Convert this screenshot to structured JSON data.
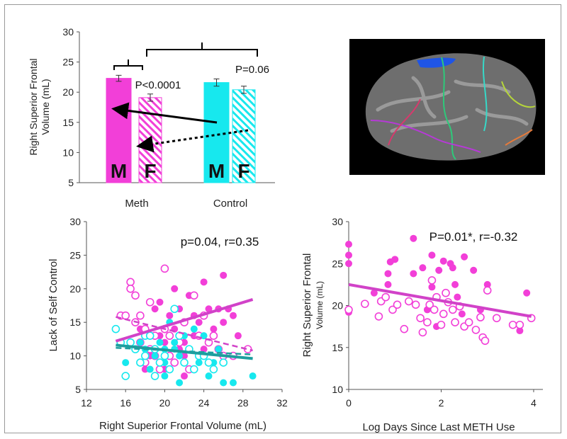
{
  "colors": {
    "meth": "#f23fd8",
    "control": "#17e8ee",
    "meth_trend": "#d142c8",
    "control_trend": "#1d9e9e",
    "axis": "#555555"
  },
  "chart_data": [
    {
      "type": "bar",
      "ylabel": "Right Superior Frontal Volume (mL)",
      "ylim": [
        5,
        30
      ],
      "yticks": [
        "5",
        "10",
        "15",
        "20",
        "25",
        "30"
      ],
      "categories": [
        "Meth",
        "Control"
      ],
      "series": [
        {
          "name": "M",
          "values": [
            22.3,
            21.6
          ],
          "errors": [
            0.5,
            0.6
          ]
        },
        {
          "name": "F",
          "values": [
            19.1,
            20.4
          ],
          "errors": [
            0.6,
            0.6
          ]
        }
      ],
      "bar_labels": [
        "M",
        "F",
        "M",
        "F"
      ],
      "annotations": [
        "P<0.0001",
        "P=0.06"
      ]
    },
    {
      "type": "scatter",
      "title": "p=0.04, r=0.35",
      "xlabel": "Right Superior Frontal Volume (mL)",
      "ylabel": "Lack of Self Control",
      "xlim": [
        12,
        32
      ],
      "ylim": [
        5,
        30
      ],
      "xticks": [
        "12",
        "16",
        "20",
        "24",
        "28",
        "32"
      ],
      "yticks": [
        "5",
        "10",
        "15",
        "20",
        "25",
        "30"
      ],
      "series": [
        {
          "group": "meth_male",
          "points": [
            [
              17.5,
              14
            ],
            [
              18,
              8
            ],
            [
              18.5,
              10
            ],
            [
              19,
              17
            ],
            [
              19.5,
              13
            ],
            [
              20,
              8
            ],
            [
              20.5,
              16
            ],
            [
              21,
              20
            ],
            [
              21,
              14
            ],
            [
              21.5,
              17
            ],
            [
              22,
              12
            ],
            [
              22,
              10
            ],
            [
              22.5,
              19
            ],
            [
              23,
              16
            ],
            [
              23,
              13
            ],
            [
              23.5,
              15
            ],
            [
              24,
              21
            ],
            [
              24,
              11
            ],
            [
              24.5,
              17
            ],
            [
              25,
              14
            ],
            [
              25.5,
              17
            ],
            [
              26,
              15
            ],
            [
              26,
              22
            ],
            [
              26.5,
              17
            ],
            [
              27,
              16
            ],
            [
              27.5,
              13
            ],
            [
              22,
              7
            ],
            [
              21.5,
              11
            ],
            [
              20,
              12
            ],
            [
              19.5,
              18
            ]
          ]
        },
        {
          "group": "meth_female",
          "points": [
            [
              15.5,
              16
            ],
            [
              16,
              16
            ],
            [
              16.5,
              21
            ],
            [
              16.5,
              20
            ],
            [
              17,
              19
            ],
            [
              17,
              15
            ],
            [
              17.5,
              12
            ],
            [
              17.5,
              16
            ],
            [
              18,
              14
            ],
            [
              18,
              9
            ],
            [
              18.5,
              11
            ],
            [
              19,
              13
            ],
            [
              19,
              10
            ],
            [
              19.5,
              8
            ],
            [
              20,
              23
            ],
            [
              20,
              14
            ],
            [
              20.5,
              13
            ],
            [
              21,
              9
            ],
            [
              21.5,
              12
            ],
            [
              22,
              15
            ],
            [
              22.5,
              8
            ],
            [
              23,
              19
            ],
            [
              23.5,
              13
            ],
            [
              24,
              16
            ],
            [
              24.5,
              12
            ],
            [
              25,
              13
            ],
            [
              25.5,
              11
            ],
            [
              26,
              10
            ],
            [
              27,
              10
            ],
            [
              28.5,
              11
            ],
            [
              18.5,
              18
            ],
            [
              20.5,
              10
            ]
          ]
        },
        {
          "group": "control_male",
          "points": [
            [
              16,
              9
            ],
            [
              16.5,
              12
            ],
            [
              17,
              11
            ],
            [
              17.5,
              12
            ],
            [
              18,
              11
            ],
            [
              18.5,
              8
            ],
            [
              19,
              10
            ],
            [
              19.5,
              12
            ],
            [
              20,
              9
            ],
            [
              20,
              11
            ],
            [
              20.5,
              15
            ],
            [
              21,
              11
            ],
            [
              21,
              12
            ],
            [
              21.5,
              10
            ],
            [
              22,
              13
            ],
            [
              22.5,
              11
            ],
            [
              23,
              14
            ],
            [
              23.5,
              9
            ],
            [
              24,
              13
            ],
            [
              24.5,
              7
            ],
            [
              25,
              9
            ],
            [
              25.5,
              11
            ],
            [
              26,
              6
            ],
            [
              27,
              6
            ],
            [
              29,
              7
            ],
            [
              21.5,
              6
            ],
            [
              20,
              7
            ]
          ]
        },
        {
          "group": "control_female",
          "points": [
            [
              15,
              14
            ],
            [
              15.5,
              12
            ],
            [
              16,
              7
            ],
            [
              16.5,
              12
            ],
            [
              17,
              11
            ],
            [
              17.5,
              9
            ],
            [
              18,
              13
            ],
            [
              18.5,
              13
            ],
            [
              19,
              11
            ],
            [
              19.5,
              9
            ],
            [
              20,
              10
            ],
            [
              20.5,
              8
            ],
            [
              21,
              17
            ],
            [
              21.5,
              13
            ],
            [
              22,
              9
            ],
            [
              22.5,
              11
            ],
            [
              23,
              8
            ],
            [
              23.5,
              10
            ],
            [
              24,
              10
            ],
            [
              24.5,
              9
            ],
            [
              25,
              8
            ],
            [
              26,
              9
            ],
            [
              18,
              10
            ],
            [
              19,
              7
            ]
          ]
        }
      ],
      "trendlines": [
        {
          "group": "meth_male",
          "from": [
            15,
            12.2
          ],
          "to": [
            29,
            18.4
          ]
        },
        {
          "group": "meth_female",
          "from": [
            15,
            15.8
          ],
          "to": [
            29,
            10.8
          ]
        },
        {
          "group": "control_male",
          "from": [
            15,
            11.6
          ],
          "to": [
            29,
            9.6
          ]
        },
        {
          "group": "control_female",
          "from": [
            15,
            11.2
          ],
          "to": [
            29,
            10.2
          ]
        }
      ]
    },
    {
      "type": "scatter",
      "title": "P=0.01*, r=-0.32",
      "xlabel": "Log Days Since Last METH Use",
      "ylabel_line1": "Right Superior Frontal",
      "ylabel_line2": "Volume (mL)",
      "xlim": [
        0,
        4.2
      ],
      "ylim": [
        10,
        30
      ],
      "xticks": [
        "0",
        "2",
        "4"
      ],
      "yticks": [
        "10",
        "15",
        "20",
        "25",
        "30"
      ],
      "series": [
        {
          "group": "male",
          "points": [
            [
              0,
              27.3
            ],
            [
              0,
              26
            ],
            [
              0,
              25
            ],
            [
              0,
              19.5
            ],
            [
              0,
              19.2
            ],
            [
              0.55,
              21.5
            ],
            [
              0.85,
              22.5
            ],
            [
              0.85,
              23.8
            ],
            [
              0.9,
              25.2
            ],
            [
              1.0,
              25.5
            ],
            [
              1.4,
              28
            ],
            [
              1.4,
              23.8
            ],
            [
              1.6,
              24.5
            ],
            [
              1.7,
              19.5
            ],
            [
              1.8,
              26
            ],
            [
              1.8,
              22.2
            ],
            [
              1.9,
              17.5
            ],
            [
              1.95,
              24.2
            ],
            [
              2.05,
              25.3
            ],
            [
              2.2,
              25
            ],
            [
              2.25,
              24.5
            ],
            [
              2.3,
              22.5
            ],
            [
              2.35,
              21
            ],
            [
              2.45,
              19
            ],
            [
              2.5,
              25.8
            ],
            [
              2.7,
              24.2
            ],
            [
              2.85,
              19.5
            ],
            [
              3.0,
              22.5
            ],
            [
              3.7,
              17
            ],
            [
              3.85,
              21.5
            ]
          ]
        },
        {
          "group": "female",
          "points": [
            [
              0,
              19.5
            ],
            [
              0.35,
              20.2
            ],
            [
              0.65,
              18.7
            ],
            [
              0.7,
              20.5
            ],
            [
              0.8,
              21
            ],
            [
              0.95,
              19.5
            ],
            [
              1.05,
              20.1
            ],
            [
              1.2,
              17.2
            ],
            [
              1.3,
              20.5
            ],
            [
              1.45,
              20.1
            ],
            [
              1.55,
              18.5
            ],
            [
              1.6,
              16.8
            ],
            [
              1.7,
              18
            ],
            [
              1.75,
              20.1
            ],
            [
              1.8,
              23
            ],
            [
              1.85,
              19.5
            ],
            [
              1.9,
              21
            ],
            [
              2.0,
              17.7
            ],
            [
              2.05,
              19
            ],
            [
              2.1,
              21.5
            ],
            [
              2.15,
              20.4
            ],
            [
              2.25,
              19.5
            ],
            [
              2.3,
              18
            ],
            [
              2.4,
              19.9
            ],
            [
              2.5,
              17.5
            ],
            [
              2.6,
              18
            ],
            [
              2.75,
              17.1
            ],
            [
              2.85,
              18.6
            ],
            [
              2.9,
              16.2
            ],
            [
              2.95,
              15.8
            ],
            [
              3.0,
              21.8
            ],
            [
              3.2,
              18.5
            ],
            [
              3.55,
              17.7
            ],
            [
              3.7,
              17.7
            ],
            [
              3.95,
              18.5
            ]
          ]
        }
      ],
      "trendlines": [
        {
          "group": "all",
          "from": [
            0,
            22.5
          ],
          "to": [
            3.95,
            18.7
          ]
        }
      ]
    }
  ]
}
